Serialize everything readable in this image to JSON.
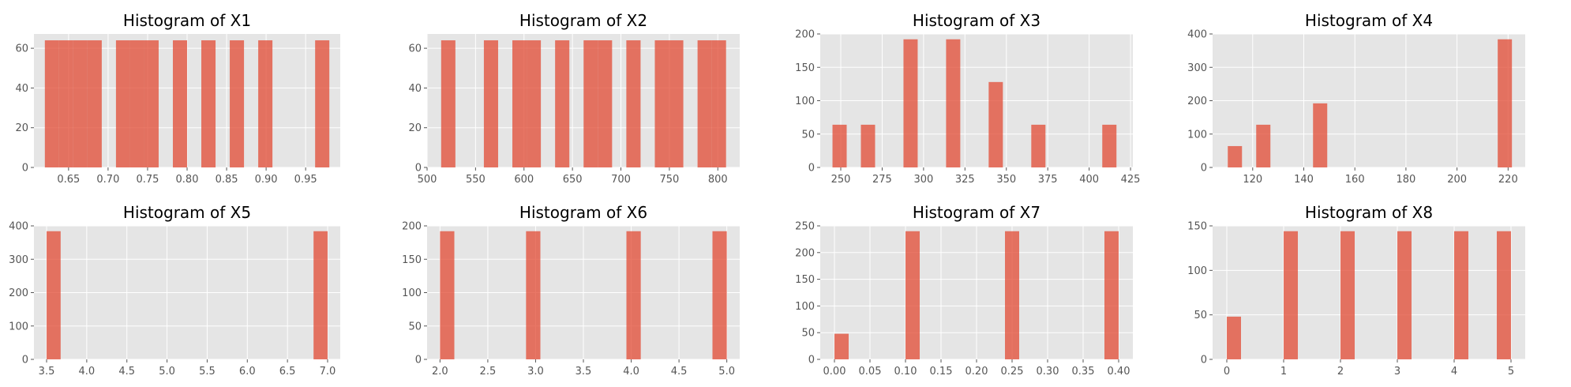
{
  "colors": {
    "bar": "#e24a33",
    "bar_alpha": 0.75,
    "panel_background": "#e5e5e5",
    "grid": "#ffffff"
  },
  "chart_data": [
    {
      "type": "bar",
      "title": "Histogram of X1",
      "xlim": [
        0.6062,
        0.9938
      ],
      "ylim": [
        0,
        67.2
      ],
      "xticks": [
        {
          "v": 0.65,
          "l": "0.65"
        },
        {
          "v": 0.7,
          "l": "0.70"
        },
        {
          "v": 0.75,
          "l": "0.75"
        },
        {
          "v": 0.8,
          "l": "0.80"
        },
        {
          "v": 0.85,
          "l": "0.85"
        },
        {
          "v": 0.9,
          "l": "0.90"
        },
        {
          "v": 0.95,
          "l": "0.95"
        }
      ],
      "yticks": [
        {
          "v": 0,
          "l": "0"
        },
        {
          "v": 20,
          "l": "20"
        },
        {
          "v": 40,
          "l": "40"
        },
        {
          "v": 60,
          "l": "60"
        }
      ],
      "bin_edges": [
        0.62,
        0.638,
        0.656,
        0.674,
        0.692,
        0.71,
        0.728,
        0.746,
        0.764,
        0.782,
        0.8,
        0.818,
        0.836,
        0.854,
        0.872,
        0.89,
        0.908,
        0.926,
        0.944,
        0.962,
        0.98
      ],
      "counts": [
        64,
        64,
        64,
        64,
        0,
        64,
        64,
        64,
        0,
        64,
        0,
        64,
        0,
        64,
        0,
        64,
        0,
        0,
        0,
        64
      ]
    },
    {
      "type": "bar",
      "title": "Histogram of X2",
      "xlim": [
        500.0,
        822.6
      ],
      "ylim": [
        0,
        67.2
      ],
      "xticks": [
        {
          "v": 500,
          "l": "500"
        },
        {
          "v": 550,
          "l": "550"
        },
        {
          "v": 600,
          "l": "600"
        },
        {
          "v": 650,
          "l": "650"
        },
        {
          "v": 700,
          "l": "700"
        },
        {
          "v": 750,
          "l": "750"
        },
        {
          "v": 800,
          "l": "800"
        }
      ],
      "yticks": [
        {
          "v": 0,
          "l": "0"
        },
        {
          "v": 20,
          "l": "20"
        },
        {
          "v": 40,
          "l": "40"
        },
        {
          "v": 60,
          "l": "60"
        }
      ],
      "bin_edges": [
        514.5,
        529.2,
        543.9,
        558.6,
        573.3,
        588.0,
        602.7,
        617.4,
        632.1,
        646.8,
        661.5,
        676.2,
        690.9,
        705.6,
        720.3,
        735.0,
        749.7,
        764.4,
        779.1,
        793.8,
        808.5
      ],
      "counts": [
        64,
        0,
        0,
        64,
        0,
        64,
        64,
        0,
        64,
        0,
        64,
        64,
        0,
        64,
        0,
        64,
        64,
        0,
        64,
        64
      ]
    },
    {
      "type": "bar",
      "title": "Histogram of X3",
      "xlim": [
        237.6,
        426.4
      ],
      "ylim": [
        0,
        200
      ],
      "xticks": [
        {
          "v": 250,
          "l": "250"
        },
        {
          "v": 275,
          "l": "275"
        },
        {
          "v": 300,
          "l": "300"
        },
        {
          "v": 325,
          "l": "325"
        },
        {
          "v": 350,
          "l": "350"
        },
        {
          "v": 375,
          "l": "375"
        },
        {
          "v": 400,
          "l": "400"
        },
        {
          "v": 425,
          "l": "425"
        }
      ],
      "yticks": [
        {
          "v": 0,
          "l": "0"
        },
        {
          "v": 50,
          "l": "50"
        },
        {
          "v": 100,
          "l": "100"
        },
        {
          "v": 150,
          "l": "150"
        },
        {
          "v": 200,
          "l": "200"
        }
      ],
      "bin_edges": [
        245.0,
        253.575,
        262.15,
        270.725,
        279.3,
        287.875,
        296.45,
        305.025,
        313.6,
        322.175,
        330.75,
        339.325,
        347.9,
        356.475,
        365.05,
        373.625,
        382.2,
        390.775,
        399.35,
        407.925,
        416.5
      ],
      "counts": [
        64,
        0,
        64,
        0,
        0,
        192,
        0,
        0,
        192,
        0,
        0,
        128,
        0,
        0,
        64,
        0,
        0,
        0,
        0,
        64
      ]
    },
    {
      "type": "bar",
      "title": "Histogram of X4",
      "xlim": [
        104.3,
        226.7
      ],
      "ylim": [
        0,
        400
      ],
      "xticks": [
        {
          "v": 120,
          "l": "120"
        },
        {
          "v": 140,
          "l": "140"
        },
        {
          "v": 160,
          "l": "160"
        },
        {
          "v": 180,
          "l": "180"
        },
        {
          "v": 200,
          "l": "200"
        },
        {
          "v": 220,
          "l": "220"
        }
      ],
      "yticks": [
        {
          "v": 0,
          "l": "0"
        },
        {
          "v": 100,
          "l": "100"
        },
        {
          "v": 200,
          "l": "200"
        },
        {
          "v": 300,
          "l": "300"
        },
        {
          "v": 400,
          "l": "400"
        }
      ],
      "bin_edges": [
        110.25,
        115.8125,
        121.375,
        126.9375,
        132.5,
        138.0625,
        143.625,
        149.1875,
        154.75,
        160.3125,
        165.875,
        171.4375,
        177.0,
        182.5625,
        188.125,
        193.6875,
        199.25,
        204.8125,
        210.375,
        215.9375,
        221.5
      ],
      "counts": [
        64,
        0,
        128,
        0,
        0,
        0,
        192,
        0,
        0,
        0,
        0,
        0,
        0,
        0,
        0,
        0,
        0,
        0,
        0,
        384
      ]
    },
    {
      "type": "bar",
      "title": "Histogram of X5",
      "xlim": [
        3.3425,
        7.1575
      ],
      "ylim": [
        0,
        400
      ],
      "xticks": [
        {
          "v": 3.5,
          "l": "3.5"
        },
        {
          "v": 4.0,
          "l": "4.0"
        },
        {
          "v": 4.5,
          "l": "4.5"
        },
        {
          "v": 5.0,
          "l": "5.0"
        },
        {
          "v": 5.5,
          "l": "5.5"
        },
        {
          "v": 6.0,
          "l": "6.0"
        },
        {
          "v": 6.5,
          "l": "6.5"
        },
        {
          "v": 7.0,
          "l": "7.0"
        }
      ],
      "yticks": [
        {
          "v": 0,
          "l": "0"
        },
        {
          "v": 100,
          "l": "100"
        },
        {
          "v": 200,
          "l": "200"
        },
        {
          "v": 300,
          "l": "300"
        },
        {
          "v": 400,
          "l": "400"
        }
      ],
      "bin_edges": [
        3.5,
        3.675,
        3.85,
        4.025,
        4.2,
        4.375,
        4.55,
        4.725,
        4.9,
        5.075,
        5.25,
        5.425,
        5.6,
        5.775,
        5.95,
        6.125,
        6.3,
        6.475,
        6.65,
        6.825,
        7.0
      ],
      "counts": [
        384,
        0,
        0,
        0,
        0,
        0,
        0,
        0,
        0,
        0,
        0,
        0,
        0,
        0,
        0,
        0,
        0,
        0,
        0,
        384
      ]
    },
    {
      "type": "bar",
      "title": "Histogram of X6",
      "xlim": [
        1.865,
        5.135
      ],
      "ylim": [
        0,
        200
      ],
      "xticks": [
        {
          "v": 2.0,
          "l": "2.0"
        },
        {
          "v": 2.5,
          "l": "2.5"
        },
        {
          "v": 3.0,
          "l": "3.0"
        },
        {
          "v": 3.5,
          "l": "3.5"
        },
        {
          "v": 4.0,
          "l": "4.0"
        },
        {
          "v": 4.5,
          "l": "4.5"
        },
        {
          "v": 5.0,
          "l": "5.0"
        }
      ],
      "yticks": [
        {
          "v": 0,
          "l": "0"
        },
        {
          "v": 50,
          "l": "50"
        },
        {
          "v": 100,
          "l": "100"
        },
        {
          "v": 150,
          "l": "150"
        },
        {
          "v": 200,
          "l": "200"
        }
      ],
      "bin_edges": [
        2.0,
        2.15,
        2.3,
        2.45,
        2.6,
        2.75,
        2.9,
        3.05,
        3.2,
        3.35,
        3.5,
        3.65,
        3.8,
        3.95,
        4.1,
        4.25,
        4.4,
        4.55,
        4.7,
        4.85,
        5.0
      ],
      "counts": [
        192,
        0,
        0,
        0,
        0,
        0,
        192,
        0,
        0,
        0,
        0,
        0,
        0,
        192,
        0,
        0,
        0,
        0,
        0,
        192
      ]
    },
    {
      "type": "bar",
      "title": "Histogram of X7",
      "xlim": [
        -0.02,
        0.42
      ],
      "ylim": [
        0,
        250
      ],
      "xticks": [
        {
          "v": 0.0,
          "l": "0.00"
        },
        {
          "v": 0.05,
          "l": "0.05"
        },
        {
          "v": 0.1,
          "l": "0.10"
        },
        {
          "v": 0.15,
          "l": "0.15"
        },
        {
          "v": 0.2,
          "l": "0.20"
        },
        {
          "v": 0.25,
          "l": "0.25"
        },
        {
          "v": 0.3,
          "l": "0.30"
        },
        {
          "v": 0.35,
          "l": "0.35"
        },
        {
          "v": 0.4,
          "l": "0.40"
        }
      ],
      "yticks": [
        {
          "v": 0,
          "l": "0"
        },
        {
          "v": 50,
          "l": "50"
        },
        {
          "v": 100,
          "l": "100"
        },
        {
          "v": 150,
          "l": "150"
        },
        {
          "v": 200,
          "l": "200"
        },
        {
          "v": 250,
          "l": "250"
        }
      ],
      "bin_edges": [
        0.0,
        0.02,
        0.04,
        0.06,
        0.08,
        0.1,
        0.12,
        0.14,
        0.16,
        0.18,
        0.2,
        0.22,
        0.24,
        0.26,
        0.28,
        0.3,
        0.32,
        0.34,
        0.36,
        0.38,
        0.4
      ],
      "counts": [
        48,
        0,
        0,
        0,
        0,
        240,
        0,
        0,
        0,
        0,
        0,
        0,
        240,
        0,
        0,
        0,
        0,
        0,
        0,
        240
      ]
    },
    {
      "type": "bar",
      "title": "Histogram of X8",
      "xlim": [
        -0.25,
        5.25
      ],
      "ylim": [
        0,
        150
      ],
      "xticks": [
        {
          "v": 0,
          "l": "0"
        },
        {
          "v": 1,
          "l": "1"
        },
        {
          "v": 2,
          "l": "2"
        },
        {
          "v": 3,
          "l": "3"
        },
        {
          "v": 4,
          "l": "4"
        },
        {
          "v": 5,
          "l": "5"
        }
      ],
      "yticks": [
        {
          "v": 0,
          "l": "0"
        },
        {
          "v": 50,
          "l": "50"
        },
        {
          "v": 100,
          "l": "100"
        },
        {
          "v": 150,
          "l": "150"
        }
      ],
      "bin_edges": [
        0.0,
        0.25,
        0.5,
        0.75,
        1.0,
        1.25,
        1.5,
        1.75,
        2.0,
        2.25,
        2.5,
        2.75,
        3.0,
        3.25,
        3.5,
        3.75,
        4.0,
        4.25,
        4.5,
        4.75,
        5.0
      ],
      "counts": [
        48,
        0,
        0,
        0,
        144,
        0,
        0,
        0,
        144,
        0,
        0,
        0,
        144,
        0,
        0,
        0,
        144,
        0,
        0,
        144
      ]
    }
  ]
}
